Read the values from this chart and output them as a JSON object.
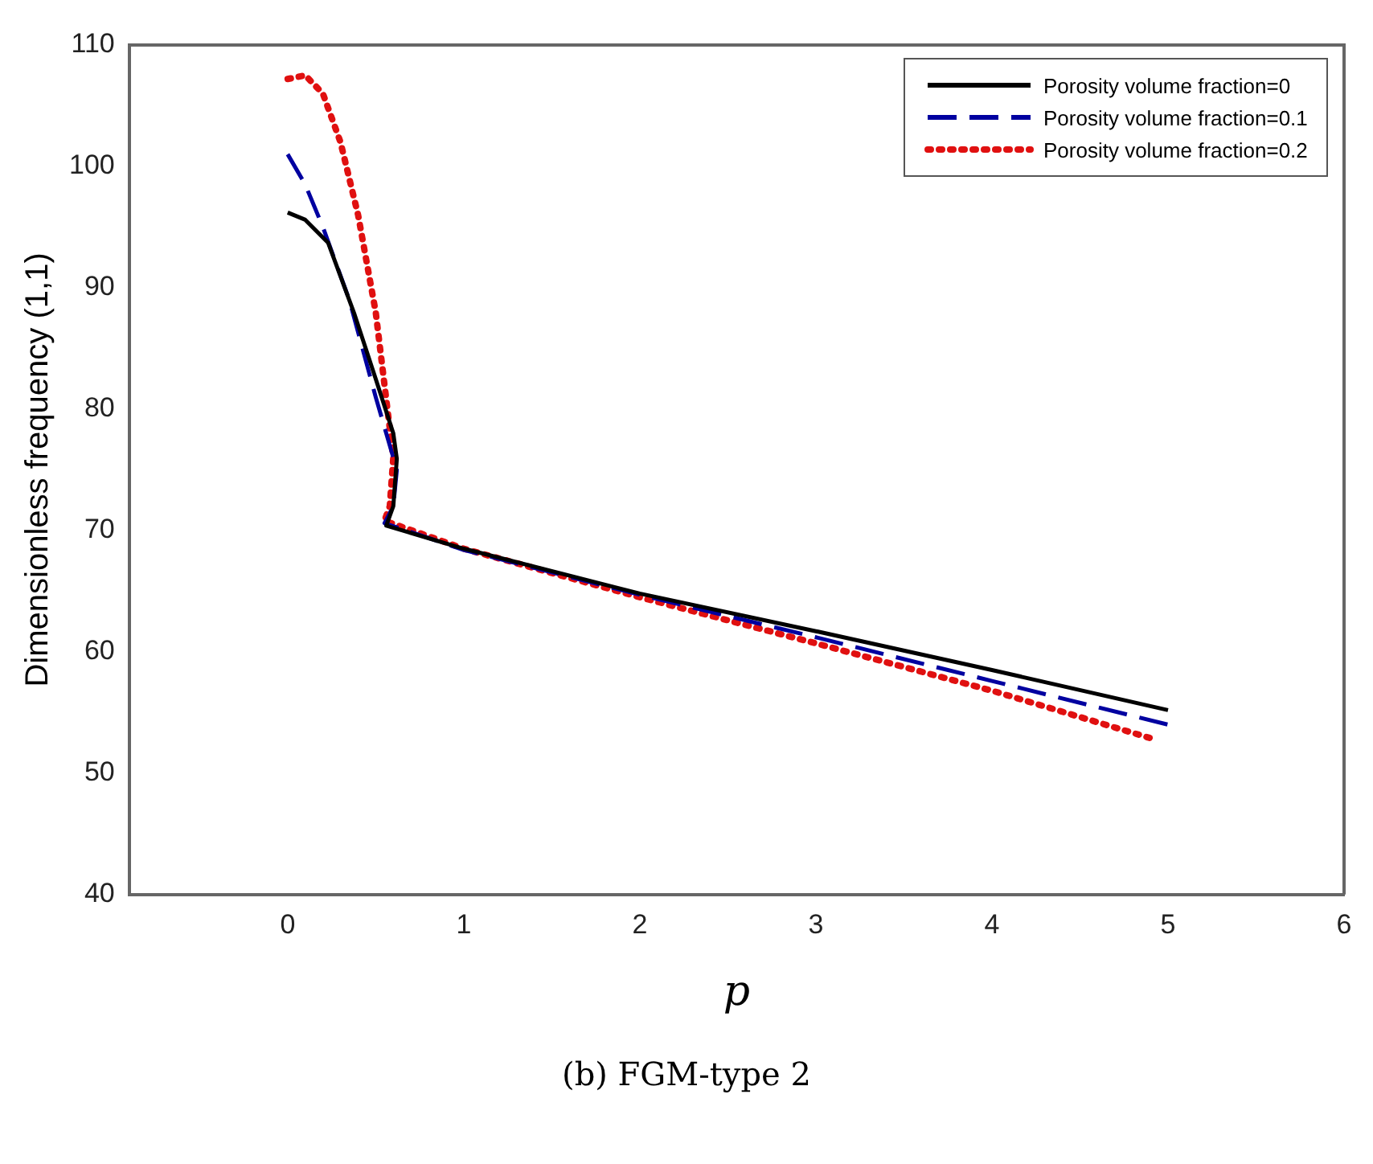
{
  "chart_data": {
    "type": "line",
    "xlabel": "p",
    "ylabel": "Dimensionless frequency (1,1)",
    "xlim": [
      -0.9,
      6
    ],
    "xticks": [
      0,
      1,
      2,
      3,
      4,
      5,
      6
    ],
    "ylim": [
      40,
      110
    ],
    "yticks": [
      40,
      50,
      60,
      70,
      80,
      90,
      100,
      110
    ],
    "grid": false,
    "legend": "top right",
    "marker": "none",
    "annotations": [
      "(b) FGM-type 2"
    ],
    "series": [
      {
        "name": "Porosity volume fraction=0",
        "color": "#000000",
        "line_style": "solid",
        "x": [
          0,
          0.1,
          0.23,
          0.38,
          0.5,
          0.6,
          0.62,
          0.6,
          0.56,
          1,
          2,
          3,
          4,
          5
        ],
        "values": [
          96.2,
          95.6,
          93.7,
          87.8,
          82.5,
          78,
          75.9,
          72,
          70.4,
          68.5,
          64.8,
          61.7,
          58.5,
          55.2
        ]
      },
      {
        "name": "Porosity volume fraction=0.1",
        "color": "#0000a0",
        "line_style": "dashed",
        "x": [
          0,
          0.1,
          0.2,
          0.35,
          0.5,
          0.6,
          0.62,
          0.6,
          0.55,
          1,
          2,
          3,
          4,
          5
        ],
        "values": [
          101,
          98.5,
          95,
          89,
          81,
          76,
          75,
          72,
          70.6,
          68.4,
          64.7,
          61.2,
          57.6,
          54
        ]
      },
      {
        "name": "Porosity volume fraction=0.2",
        "color": "#e01010",
        "line_style": "dotted",
        "x": [
          0,
          0.1,
          0.2,
          0.3,
          0.4,
          0.5,
          0.55,
          0.6,
          0.58,
          0.55,
          1,
          2,
          3,
          4,
          4.92
        ],
        "values": [
          107.2,
          107.5,
          106,
          102,
          96,
          88,
          82,
          76,
          72,
          70.8,
          68.5,
          64.5,
          60.7,
          56.8,
          52.8
        ]
      }
    ]
  }
}
